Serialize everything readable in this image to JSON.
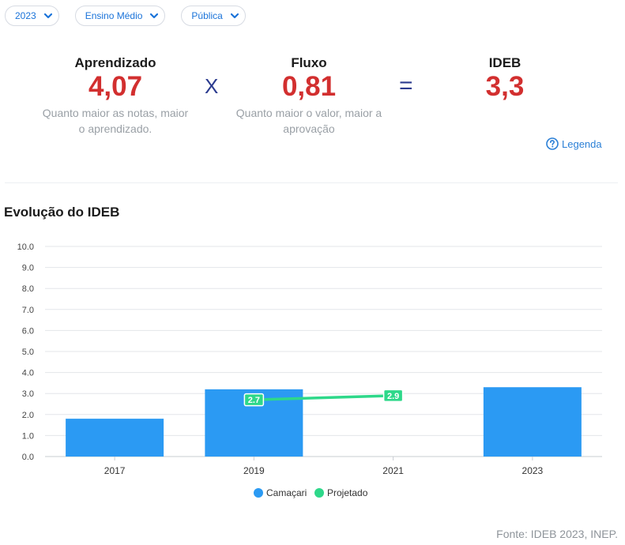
{
  "filters": [
    {
      "label": "2023"
    },
    {
      "label": "Ensino Médio"
    },
    {
      "label": "Pública"
    }
  ],
  "metrics": {
    "aprendizado": {
      "label": "Aprendizado",
      "value": "4,07",
      "desc_line1": "Quanto maior as notas, maior",
      "desc_line2": "o aprendizado."
    },
    "operator_multiply": "X",
    "fluxo": {
      "label": "Fluxo",
      "value": "0,81",
      "desc_line1": "Quanto maior o valor, maior a",
      "desc_line2": "aprovação"
    },
    "operator_equals": "=",
    "ideb": {
      "label": "IDEB",
      "value": "3,3"
    }
  },
  "legend_link": {
    "label": "Legenda",
    "icon": "question-circle-icon"
  },
  "section_title": "Evolução do IDEB",
  "source": "Fonte: IDEB 2023, INEP.",
  "colors": {
    "bar": "#2b9af3",
    "line": "#2ed88a",
    "accent_red": "#d22f2f",
    "link_blue": "#1a73d9"
  },
  "chart_data": {
    "type": "bar",
    "categories": [
      "2017",
      "2019",
      "2021",
      "2023"
    ],
    "ylim": [
      0,
      10
    ],
    "yticks": [
      "0.0",
      "1.0",
      "2.0",
      "3.0",
      "4.0",
      "5.0",
      "6.0",
      "7.0",
      "8.0",
      "9.0",
      "10.0"
    ],
    "grid": true,
    "legend_position": "bottom",
    "series": [
      {
        "name": "Camaçari",
        "type": "bar",
        "values": [
          1.8,
          3.2,
          null,
          3.3
        ]
      },
      {
        "name": "Projetado",
        "type": "line",
        "values": [
          null,
          2.7,
          2.9,
          null
        ],
        "labels": [
          null,
          "2.7",
          "2.9",
          null
        ]
      }
    ]
  }
}
